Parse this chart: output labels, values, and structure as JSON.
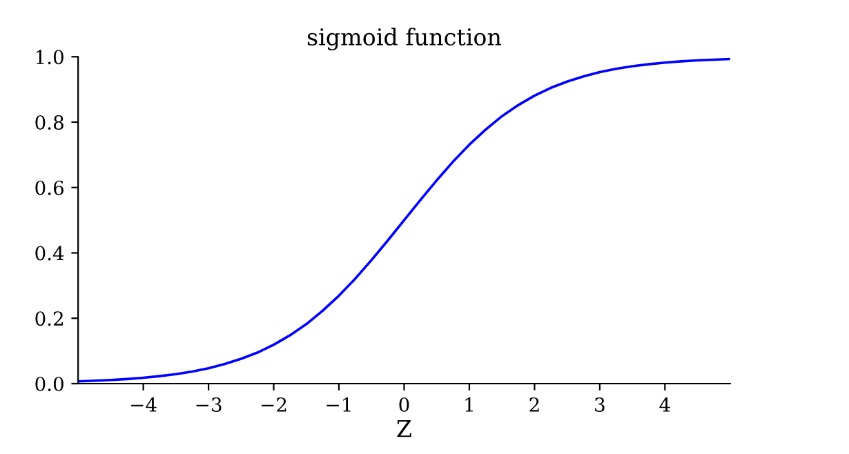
{
  "chart_data": {
    "type": "line",
    "title": "sigmoid function",
    "xlabel": "Z",
    "x": [
      -5,
      -4.75,
      -4.5,
      -4.25,
      -4,
      -3.75,
      -3.5,
      -3.25,
      -3,
      -2.75,
      -2.5,
      -2.25,
      -2,
      -1.75,
      -1.5,
      -1.25,
      -1,
      -0.75,
      -0.5,
      -0.25,
      0,
      0.25,
      0.5,
      0.75,
      1,
      1.25,
      1.5,
      1.75,
      2,
      2.25,
      2.5,
      2.75,
      3,
      3.25,
      3.5,
      3.75,
      4,
      4.25,
      4.5,
      4.75,
      5
    ],
    "series": [
      {
        "color": "#0000ff",
        "values": [
          0.007,
          0.009,
          0.011,
          0.014,
          0.018,
          0.023,
          0.029,
          0.037,
          0.047,
          0.06,
          0.076,
          0.095,
          0.119,
          0.148,
          0.182,
          0.223,
          0.269,
          0.321,
          0.378,
          0.438,
          0.5,
          0.562,
          0.622,
          0.679,
          0.731,
          0.777,
          0.818,
          0.852,
          0.881,
          0.905,
          0.924,
          0.94,
          0.953,
          0.963,
          0.971,
          0.977,
          0.982,
          0.986,
          0.989,
          0.991,
          0.993
        ]
      }
    ],
    "xlim": [
      -5,
      5
    ],
    "xticks": [
      {
        "value": -4,
        "label": "−4"
      },
      {
        "value": -3,
        "label": "−3"
      },
      {
        "value": -2,
        "label": "−2"
      },
      {
        "value": -1,
        "label": "−1"
      },
      0,
      1,
      2,
      3,
      4
    ],
    "ylim": [
      0,
      1
    ],
    "yticks": [
      {
        "value": 0,
        "label": "0.0"
      },
      {
        "value": 0.2,
        "label": "0.2"
      },
      {
        "value": 0.4,
        "label": "0.4"
      },
      {
        "value": 0.6,
        "label": "0.6"
      },
      {
        "value": 0.8,
        "label": "0.8"
      },
      {
        "value": 1,
        "label": "1.0"
      }
    ],
    "grid": false,
    "marker": "none",
    "line_style": "solid"
  }
}
